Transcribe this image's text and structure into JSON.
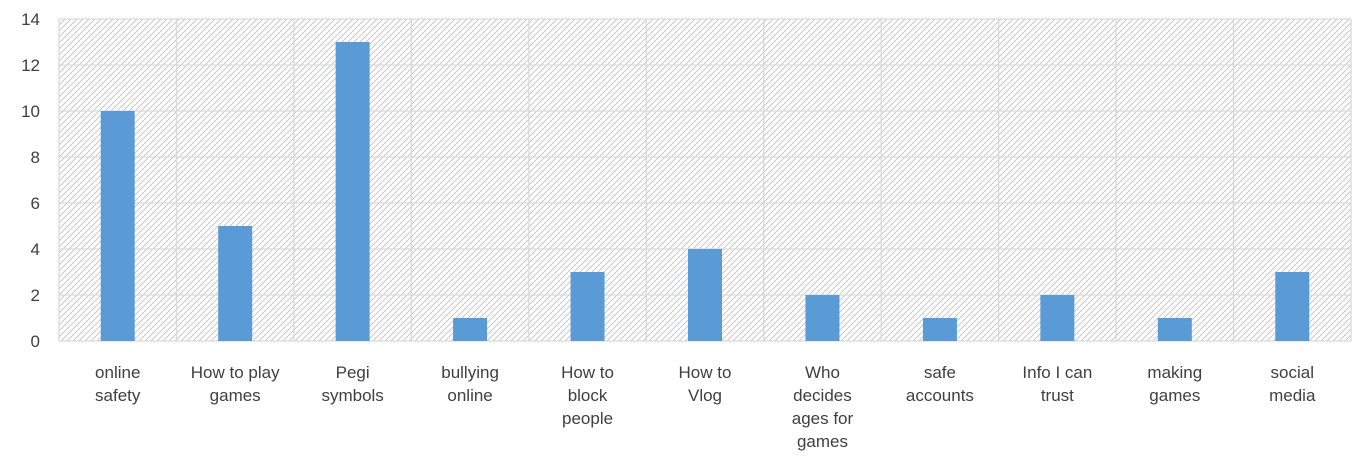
{
  "chart_data": {
    "type": "bar",
    "title": "",
    "xlabel": "",
    "ylabel": "",
    "categories": [
      [
        "online",
        "safety"
      ],
      [
        "How to play",
        "games"
      ],
      [
        "Pegi",
        "symbols"
      ],
      [
        "bullying",
        "online"
      ],
      [
        "How to",
        "block",
        "people"
      ],
      [
        "How to",
        "Vlog"
      ],
      [
        "Who",
        "decides",
        "ages for",
        "games"
      ],
      [
        "safe",
        "accounts"
      ],
      [
        "Info I can",
        "trust"
      ],
      [
        "making",
        "games"
      ],
      [
        "social",
        "media"
      ]
    ],
    "values": [
      10,
      5,
      13,
      1,
      3,
      4,
      2,
      1,
      2,
      1,
      3
    ],
    "ylim": [
      0,
      14
    ],
    "yticks": [
      "0",
      "2",
      "4",
      "6",
      "8",
      "10",
      "12",
      "14"
    ],
    "grid": true,
    "legend": "none",
    "colors": {
      "bar": "#5B9BD5",
      "grid": "#D9D9D9",
      "hatch": "#BFBFBF",
      "text": "#404040"
    }
  }
}
